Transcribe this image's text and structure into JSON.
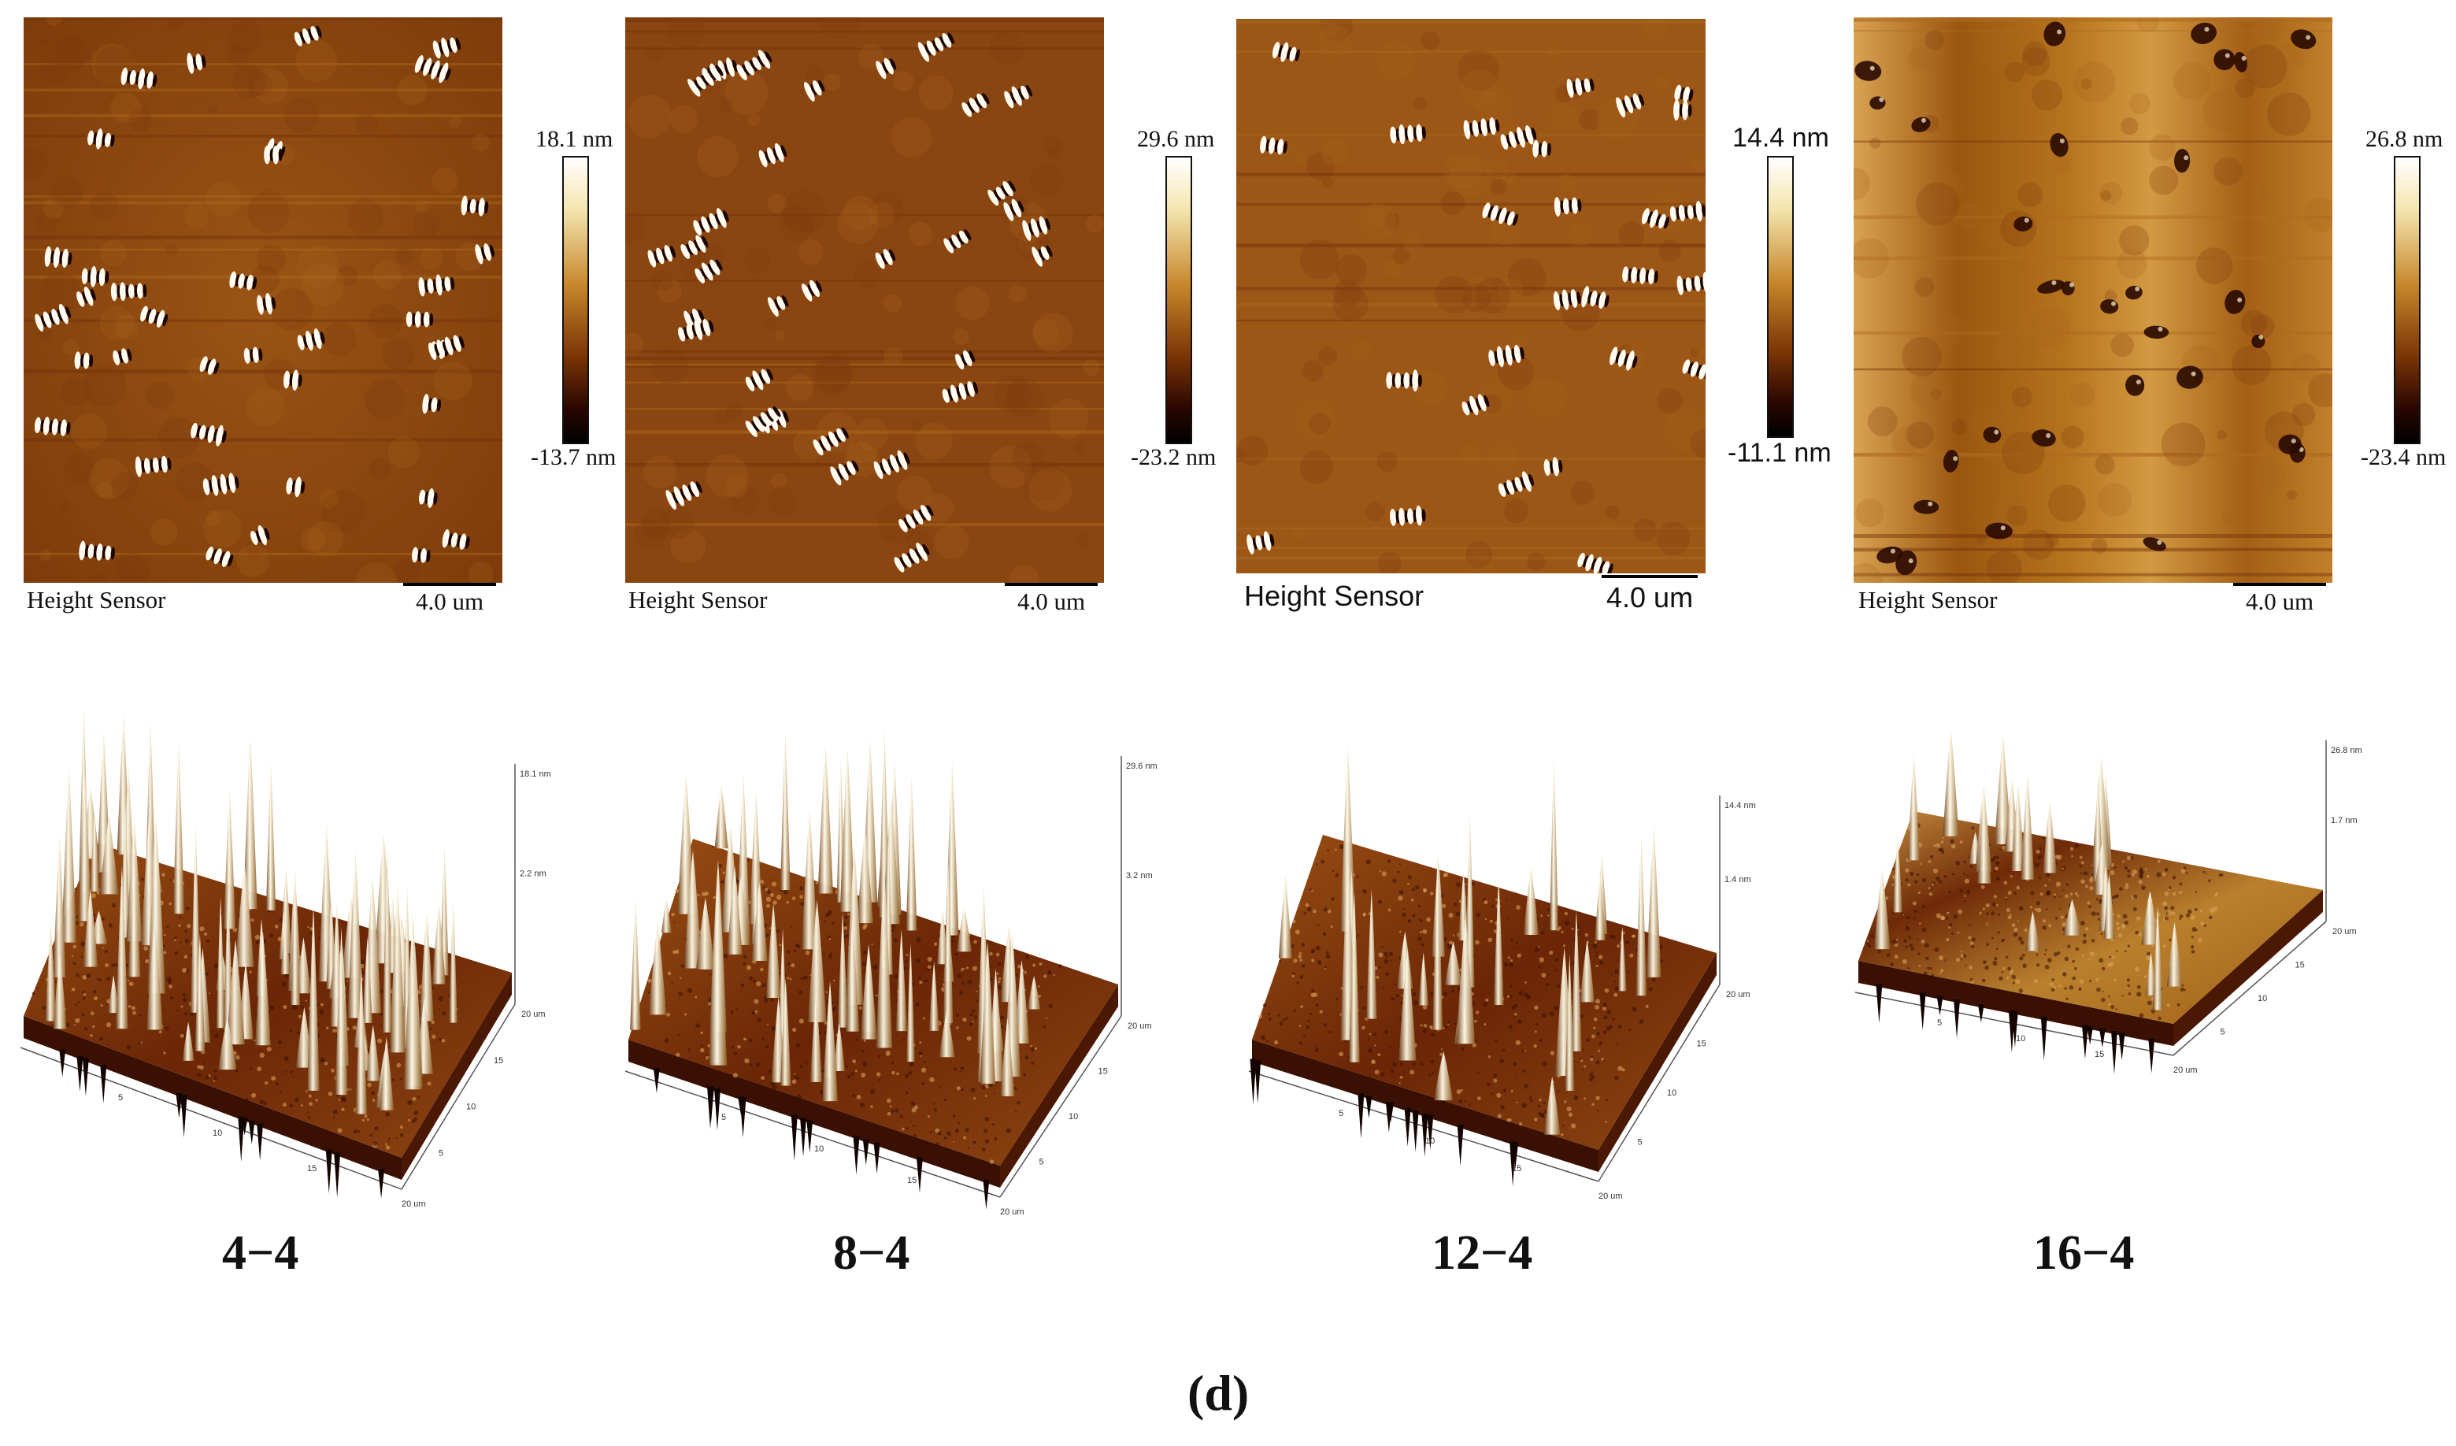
{
  "figure_label": "(d)",
  "samples": [
    {
      "name": "4−4",
      "scale_max": "18.1 nm",
      "scale_min": "-13.7 nm",
      "caption": "Height Sensor",
      "scalebar": "4.0 um",
      "z_labels": [
        "18.1 nm",
        "2.2 nm"
      ]
    },
    {
      "name": "8−4",
      "scale_max": "29.6 nm",
      "scale_min": "-23.2 nm",
      "caption": "Height Sensor",
      "scalebar": "4.0 um",
      "z_labels": [
        "29.6 nm",
        "3.2 nm"
      ]
    },
    {
      "name": "12−4",
      "scale_max": "14.4 nm",
      "scale_min": "-11.1 nm",
      "caption": "Height Sensor",
      "scalebar": "4.0 um",
      "z_labels": [
        "14.4 nm",
        "1.4 nm"
      ]
    },
    {
      "name": "16−4",
      "scale_max": "26.8 nm",
      "scale_min": "-23.4 nm",
      "caption": "Height Sensor",
      "scalebar": "4.0 um",
      "z_labels": [
        "26.8 nm",
        "1.7 nm"
      ]
    }
  ],
  "axis_ticks_3d": [
    "5",
    "10",
    "15",
    "20 um"
  ],
  "colors": {
    "dark": "#5a1c02",
    "mid": "#8e4a10",
    "light": "#c9892e",
    "highlight": "#fff6dc",
    "shadow": "#000000"
  }
}
